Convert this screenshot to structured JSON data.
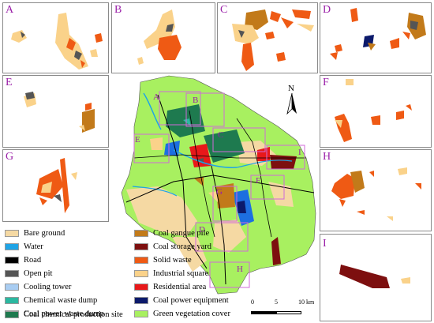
{
  "panels": [
    {
      "id": "A",
      "label": "A"
    },
    {
      "id": "B",
      "label": "B"
    },
    {
      "id": "C",
      "label": "C"
    },
    {
      "id": "D",
      "label": "D"
    },
    {
      "id": "E",
      "label": "E"
    },
    {
      "id": "F",
      "label": "F"
    },
    {
      "id": "G",
      "label": "G"
    },
    {
      "id": "H",
      "label": "H"
    },
    {
      "id": "I",
      "label": "I"
    }
  ],
  "main_map": {
    "north_label": "N",
    "box_labels": [
      "A",
      "B",
      "C",
      "D",
      "E",
      "F",
      "G",
      "H",
      "I"
    ],
    "scale": {
      "ticks": [
        "0",
        "5",
        "10 km"
      ]
    }
  },
  "legend": [
    {
      "label": "Bare ground",
      "color": "#f5d9a3"
    },
    {
      "label": "Water",
      "color": "#1fa4e6"
    },
    {
      "label": "Road",
      "color": "#000000"
    },
    {
      "label": "Open pit",
      "color": "#555555"
    },
    {
      "label": "Cooling tower",
      "color": "#a9cdf2"
    },
    {
      "label": "Chemical waste dump",
      "color": "#2bb8a0"
    },
    {
      "label": "Coal power waste dump",
      "color": "#1d6fe0"
    },
    {
      "label": "Coal chemical production site",
      "color": "#1e7a4f"
    },
    {
      "label": "Coal gangue pile",
      "color": "#c27a1a"
    },
    {
      "label": "Coal storage yard",
      "color": "#7d0f0f"
    },
    {
      "label": "Solid waste",
      "color": "#ef5a14"
    },
    {
      "label": "Industrial square",
      "color": "#fad28a"
    },
    {
      "label": "Residential area",
      "color": "#e8181a"
    },
    {
      "label": "Coal power equipment",
      "color": "#0c1a6b"
    },
    {
      "label": "Green vegetation cover",
      "color": "#a8f060"
    }
  ]
}
